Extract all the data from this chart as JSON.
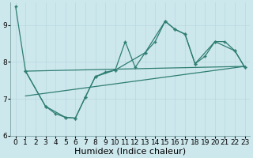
{
  "xlabel": "Humidex (Indice chaleur)",
  "ylabel": "",
  "background_color": "#cde8ed",
  "line_color": "#2e7d72",
  "xlim": [
    -0.5,
    23.5
  ],
  "ylim": [
    6.0,
    9.6
  ],
  "yticks": [
    6,
    7,
    8,
    9
  ],
  "xticks": [
    0,
    1,
    2,
    3,
    4,
    5,
    6,
    7,
    8,
    9,
    10,
    11,
    12,
    13,
    14,
    15,
    16,
    17,
    18,
    19,
    20,
    21,
    22,
    23
  ],
  "series_main": {
    "x": [
      0,
      1,
      3,
      4,
      5,
      6,
      7,
      8,
      9,
      10,
      11,
      12,
      13,
      14,
      15,
      16,
      17,
      18,
      19,
      20,
      21,
      22,
      23
    ],
    "y": [
      9.5,
      7.75,
      6.8,
      6.6,
      6.5,
      6.48,
      7.05,
      7.6,
      7.72,
      7.78,
      8.55,
      7.85,
      8.25,
      8.55,
      9.1,
      8.88,
      8.75,
      7.95,
      8.15,
      8.55,
      8.55,
      8.3,
      7.85
    ]
  },
  "series_second": {
    "x": [
      1,
      3,
      5,
      6,
      7,
      8,
      10,
      13,
      15,
      16,
      17,
      18,
      20,
      22,
      23
    ],
    "y": [
      7.75,
      6.8,
      6.5,
      6.48,
      7.05,
      7.6,
      7.78,
      8.25,
      9.1,
      8.88,
      8.75,
      7.95,
      8.55,
      8.3,
      7.85
    ]
  },
  "diag_line1": {
    "x": [
      1,
      23
    ],
    "y": [
      7.75,
      7.88
    ]
  },
  "diag_line2": {
    "x": [
      1,
      23
    ],
    "y": [
      7.08,
      7.88
    ]
  },
  "grid_color": "#b8d8de",
  "grid_line_color": "#c8e2e8",
  "tick_fontsize": 6.5,
  "xlabel_fontsize": 8.0
}
